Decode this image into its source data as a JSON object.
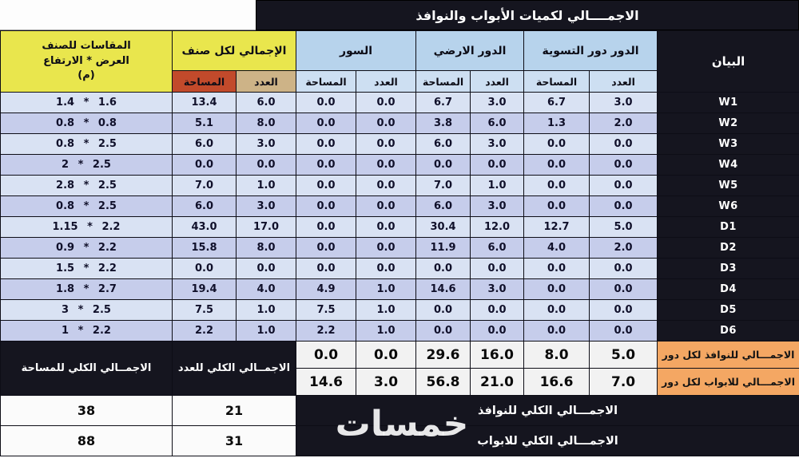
{
  "title": "الاجمــــالي لكميات الأبواب والنوافذ",
  "watermark": "خمسات",
  "header": {
    "bayan": "البيان",
    "basement": "الدور دور التسوية",
    "ground": "الدور الارضي",
    "fence": "السور",
    "total_per_type": "الإجمالي لكل صنف",
    "count": "العدد",
    "area": "المساحة",
    "dims_line1": "المقاسات للصنف",
    "dims_line2": "العرض * الارتفاع",
    "dims_line3": "(م)"
  },
  "rows": [
    {
      "name": "W1",
      "basement_count": "3.0",
      "basement_area": "6.7",
      "ground_count": "3.0",
      "ground_area": "6.7",
      "fence_count": "0.0",
      "fence_area": "0.0",
      "total_count": "6.0",
      "total_area": "13.4",
      "dims": "1.4 * 1.6"
    },
    {
      "name": "W2",
      "basement_count": "2.0",
      "basement_area": "1.3",
      "ground_count": "6.0",
      "ground_area": "3.8",
      "fence_count": "0.0",
      "fence_area": "0.0",
      "total_count": "8.0",
      "total_area": "5.1",
      "dims": "0.8 * 0.8"
    },
    {
      "name": "W3",
      "basement_count": "0.0",
      "basement_area": "0.0",
      "ground_count": "3.0",
      "ground_area": "6.0",
      "fence_count": "0.0",
      "fence_area": "0.0",
      "total_count": "3.0",
      "total_area": "6.0",
      "dims": "0.8 * 2.5"
    },
    {
      "name": "W4",
      "basement_count": "0.0",
      "basement_area": "0.0",
      "ground_count": "0.0",
      "ground_area": "0.0",
      "fence_count": "0.0",
      "fence_area": "0.0",
      "total_count": "0.0",
      "total_area": "0.0",
      "dims": "2 * 2.5"
    },
    {
      "name": "W5",
      "basement_count": "0.0",
      "basement_area": "0.0",
      "ground_count": "1.0",
      "ground_area": "7.0",
      "fence_count": "0.0",
      "fence_area": "0.0",
      "total_count": "1.0",
      "total_area": "7.0",
      "dims": "2.8 * 2.5"
    },
    {
      "name": "W6",
      "basement_count": "0.0",
      "basement_area": "0.0",
      "ground_count": "3.0",
      "ground_area": "6.0",
      "fence_count": "0.0",
      "fence_area": "0.0",
      "total_count": "3.0",
      "total_area": "6.0",
      "dims": "0.8 * 2.5"
    },
    {
      "name": "D1",
      "basement_count": "5.0",
      "basement_area": "12.7",
      "ground_count": "12.0",
      "ground_area": "30.4",
      "fence_count": "0.0",
      "fence_area": "0.0",
      "total_count": "17.0",
      "total_area": "43.0",
      "dims": "1.15 * 2.2"
    },
    {
      "name": "D2",
      "basement_count": "2.0",
      "basement_area": "4.0",
      "ground_count": "6.0",
      "ground_area": "11.9",
      "fence_count": "0.0",
      "fence_area": "0.0",
      "total_count": "8.0",
      "total_area": "15.8",
      "dims": "0.9 * 2.2"
    },
    {
      "name": "D3",
      "basement_count": "0.0",
      "basement_area": "0.0",
      "ground_count": "0.0",
      "ground_area": "0.0",
      "fence_count": "0.0",
      "fence_area": "0.0",
      "total_count": "0.0",
      "total_area": "0.0",
      "dims": "1.5 * 2.2"
    },
    {
      "name": "D4",
      "basement_count": "0.0",
      "basement_area": "0.0",
      "ground_count": "3.0",
      "ground_area": "14.6",
      "fence_count": "1.0",
      "fence_area": "4.9",
      "total_count": "4.0",
      "total_area": "19.4",
      "dims": "1.8 * 2.7"
    },
    {
      "name": "D5",
      "basement_count": "0.0",
      "basement_area": "0.0",
      "ground_count": "0.0",
      "ground_area": "0.0",
      "fence_count": "1.0",
      "fence_area": "7.5",
      "total_count": "1.0",
      "total_area": "7.5",
      "dims": "3 * 2.5"
    },
    {
      "name": "D6",
      "basement_count": "0.0",
      "basement_area": "0.0",
      "ground_count": "0.0",
      "ground_area": "0.0",
      "fence_count": "1.0",
      "fence_area": "2.2",
      "total_count": "1.0",
      "total_area": "2.2",
      "dims": "1 * 2.2"
    }
  ],
  "per_floor_totals": {
    "windows": {
      "label": "الاجمـــالي للنوافذ لكل دور",
      "basement_count": "5.0",
      "basement_area": "8.0",
      "ground_count": "16.0",
      "ground_area": "29.6",
      "fence_count": "0.0",
      "fence_area": "0.0"
    },
    "doors": {
      "label": "الاجمـــالي للابواب لكل دور",
      "basement_count": "7.0",
      "basement_area": "16.6",
      "ground_count": "21.0",
      "ground_area": "56.8",
      "fence_count": "3.0",
      "fence_area": "14.6"
    }
  },
  "grand_totals": {
    "count_label": "الاجمــالي الكلي للعدد",
    "area_label": "الاجمــالي الكلي للمساحة",
    "windows": {
      "label": "الاجمـــالي الكلي للنوافذ",
      "count": "21",
      "area": "38"
    },
    "doors": {
      "label": "الاجمـــالي الكلي للابواب",
      "count": "31",
      "area": "88"
    }
  },
  "chart_data": {
    "type": "table",
    "title": "الاجمــــالي لكميات الأبواب والنوافذ",
    "columns_rtl": [
      "البيان",
      "العدد (الدور دور التسوية)",
      "المساحة (الدور دور التسوية)",
      "العدد (الدور الارضي)",
      "المساحة (الدور الارضي)",
      "العدد (السور)",
      "المساحة (السور)",
      "العدد (الإجمالي لكل صنف)",
      "المساحة (الإجمالي لكل صنف)",
      "المقاسات للصنف العرض * الارتفاع (م)"
    ],
    "rows": [
      [
        "W1",
        "3.0",
        "6.7",
        "3.0",
        "6.7",
        "0.0",
        "0.0",
        "6.0",
        "13.4",
        "1.4 * 1.6"
      ],
      [
        "W2",
        "2.0",
        "1.3",
        "6.0",
        "3.8",
        "0.0",
        "0.0",
        "8.0",
        "5.1",
        "0.8 * 0.8"
      ],
      [
        "W3",
        "0.0",
        "0.0",
        "3.0",
        "6.0",
        "0.0",
        "0.0",
        "3.0",
        "6.0",
        "0.8 * 2.5"
      ],
      [
        "W4",
        "0.0",
        "0.0",
        "0.0",
        "0.0",
        "0.0",
        "0.0",
        "0.0",
        "0.0",
        "2 * 2.5"
      ],
      [
        "W5",
        "0.0",
        "0.0",
        "1.0",
        "7.0",
        "0.0",
        "0.0",
        "1.0",
        "7.0",
        "2.8 * 2.5"
      ],
      [
        "W6",
        "0.0",
        "0.0",
        "3.0",
        "6.0",
        "0.0",
        "0.0",
        "3.0",
        "6.0",
        "0.8 * 2.5"
      ],
      [
        "D1",
        "5.0",
        "12.7",
        "12.0",
        "30.4",
        "0.0",
        "0.0",
        "17.0",
        "43.0",
        "1.15 * 2.2"
      ],
      [
        "D2",
        "2.0",
        "4.0",
        "6.0",
        "11.9",
        "0.0",
        "0.0",
        "8.0",
        "15.8",
        "0.9 * 2.2"
      ],
      [
        "D3",
        "0.0",
        "0.0",
        "0.0",
        "0.0",
        "0.0",
        "0.0",
        "0.0",
        "0.0",
        "1.5 * 2.2"
      ],
      [
        "D4",
        "0.0",
        "0.0",
        "3.0",
        "14.6",
        "1.0",
        "4.9",
        "4.0",
        "19.4",
        "1.8 * 2.7"
      ],
      [
        "D5",
        "0.0",
        "0.0",
        "0.0",
        "0.0",
        "1.0",
        "7.5",
        "1.0",
        "7.5",
        "3 * 2.5"
      ],
      [
        "D6",
        "0.0",
        "0.0",
        "0.0",
        "0.0",
        "1.0",
        "2.2",
        "1.0",
        "2.2",
        "1 * 2.2"
      ]
    ],
    "totals_rows": [
      [
        "الاجمـــالي للنوافذ لكل دور",
        "5.0",
        "8.0",
        "16.0",
        "29.6",
        "0.0",
        "0.0"
      ],
      [
        "الاجمـــالي للابواب لكل دور",
        "7.0",
        "16.6",
        "21.0",
        "56.8",
        "3.0",
        "14.6"
      ],
      [
        "الاجمـــالي الكلي للنوافذ",
        "21",
        "38"
      ],
      [
        "الاجمـــالي الكلي للابواب",
        "31",
        "88"
      ]
    ]
  }
}
